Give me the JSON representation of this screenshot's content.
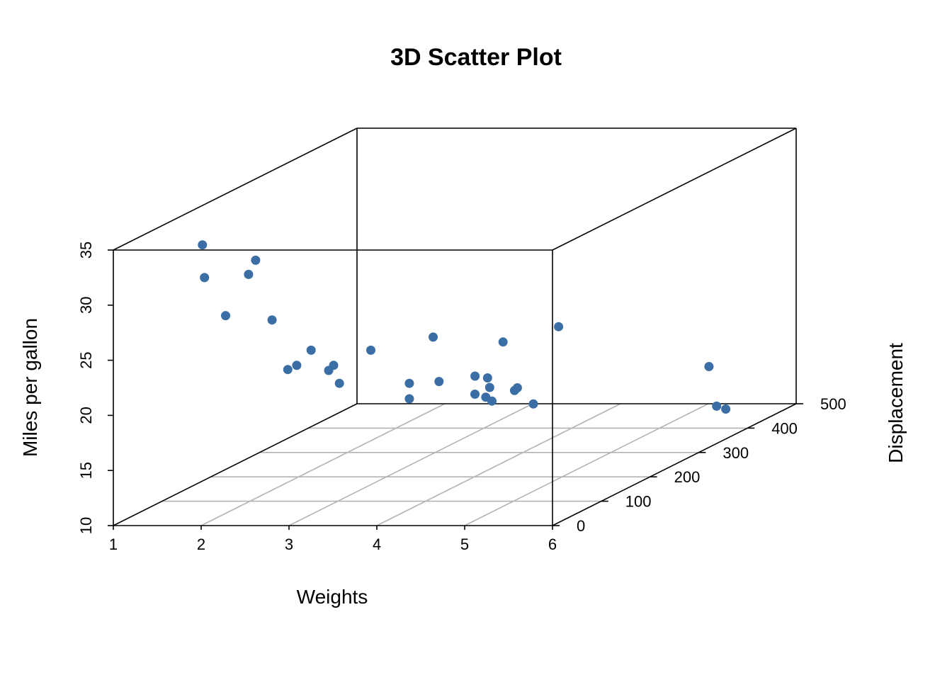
{
  "chart_data": {
    "type": "scatter",
    "title": "3D Scatter Plot",
    "xlabel": "Weights",
    "ylabel": "Displacement",
    "zlabel": "Miles per gallon",
    "xlim": [
      1,
      6
    ],
    "ylim": [
      0,
      500
    ],
    "zlim": [
      10,
      35
    ],
    "x_ticks": [
      1,
      2,
      3,
      4,
      5,
      6
    ],
    "y_ticks": [
      0,
      100,
      200,
      300,
      400,
      500
    ],
    "z_ticks": [
      10,
      15,
      20,
      25,
      30,
      35
    ],
    "grid": true,
    "point_color": "#3a6ea5",
    "points": [
      {
        "x": 2.2,
        "y": 75.7,
        "z": 32.4
      },
      {
        "x": 1.62,
        "y": 71.1,
        "z": 33.9
      },
      {
        "x": 1.84,
        "y": 79.0,
        "z": 27.3
      },
      {
        "x": 1.94,
        "y": 108.0,
        "z": 30.4
      },
      {
        "x": 1.51,
        "y": 95.1,
        "z": 30.4
      },
      {
        "x": 2.32,
        "y": 120.1,
        "z": 21.5
      },
      {
        "x": 2.14,
        "y": 120.3,
        "z": 26.0
      },
      {
        "x": 2.2,
        "y": 160.0,
        "z": 21.0
      },
      {
        "x": 2.62,
        "y": 160.0,
        "z": 21.0
      },
      {
        "x": 2.47,
        "y": 140.8,
        "z": 22.8
      },
      {
        "x": 2.78,
        "y": 121.0,
        "z": 21.4
      },
      {
        "x": 2.77,
        "y": 145.0,
        "z": 19.7
      },
      {
        "x": 3.15,
        "y": 140.8,
        "z": 22.8
      },
      {
        "x": 3.21,
        "y": 258.0,
        "z": 21.4
      },
      {
        "x": 3.44,
        "y": 167.6,
        "z": 19.2
      },
      {
        "x": 3.44,
        "y": 167.6,
        "z": 17.8
      },
      {
        "x": 3.44,
        "y": 360.0,
        "z": 18.7
      },
      {
        "x": 3.46,
        "y": 225.0,
        "z": 18.1
      },
      {
        "x": 3.57,
        "y": 360.0,
        "z": 14.3
      },
      {
        "x": 3.17,
        "y": 351.0,
        "z": 15.8
      },
      {
        "x": 3.52,
        "y": 318.0,
        "z": 15.5
      },
      {
        "x": 3.43,
        "y": 304.0,
        "z": 15.2
      },
      {
        "x": 3.57,
        "y": 301.0,
        "z": 15.0
      },
      {
        "x": 3.73,
        "y": 275.8,
        "z": 17.3
      },
      {
        "x": 3.78,
        "y": 275.8,
        "z": 15.2
      },
      {
        "x": 3.84,
        "y": 350.0,
        "z": 13.3
      },
      {
        "x": 3.85,
        "y": 400.0,
        "z": 19.2
      },
      {
        "x": 4.07,
        "y": 275.8,
        "z": 16.4
      },
      {
        "x": 5.25,
        "y": 472.0,
        "z": 10.4
      },
      {
        "x": 5.42,
        "y": 460.0,
        "z": 10.4
      },
      {
        "x": 5.34,
        "y": 440.0,
        "z": 14.7
      }
    ]
  }
}
